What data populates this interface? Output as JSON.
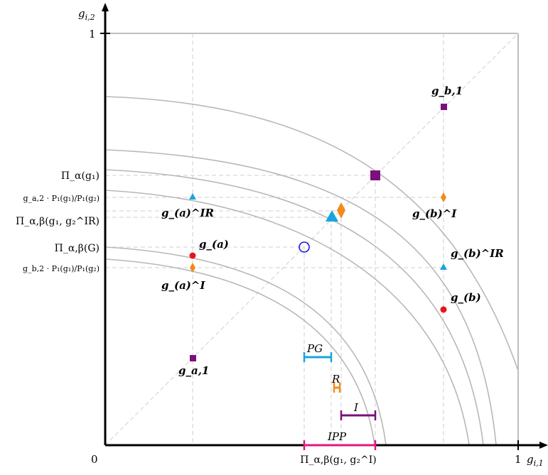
{
  "axes": {
    "x_label_var": "g",
    "x_label_sub": "i,1",
    "y_label_var": "g",
    "y_label_sub": "i,2",
    "origin": "0",
    "x_one": "1",
    "y_one": "1"
  },
  "y_ticks": {
    "pi_alpha": "Π_α(g₁)",
    "ga2_ratio": "g_a,2 · P₁(g₁)/P₁(g₂)",
    "pi_ab_ir": "Π_α,β(g₁, g₂^IR)",
    "pi_ab_G": "Π_α,β(G)",
    "gb2_ratio": "g_b,2 · P₁(g₁)/P₁(g₂)"
  },
  "x_ticks": {
    "pi_ab_i": "Π_α,β(g₁, g₂^I)"
  },
  "point_labels": {
    "g_b1": "g_b,1",
    "g_a1": "g_a,1",
    "g_a": "g_(a)",
    "g_b": "g_(b)",
    "g_a_ir": "g_(a)^IR",
    "g_b_ir": "g_(b)^IR",
    "g_a_i": "g_(a)^I",
    "g_b_i": "g_(b)^I"
  },
  "intervals": {
    "pg": "PG",
    "r": "R",
    "i": "I",
    "ipp": "IPP"
  },
  "colors": {
    "axis": "#000000",
    "curve": "#b8b8b8",
    "guide": "#cfcfcf",
    "purple": "#7b0f7b",
    "orange": "#f28a1c",
    "cyan": "#17a6dc",
    "red": "#e8161b",
    "blue": "#1a1ae6",
    "magenta": "#e0187f"
  }
}
